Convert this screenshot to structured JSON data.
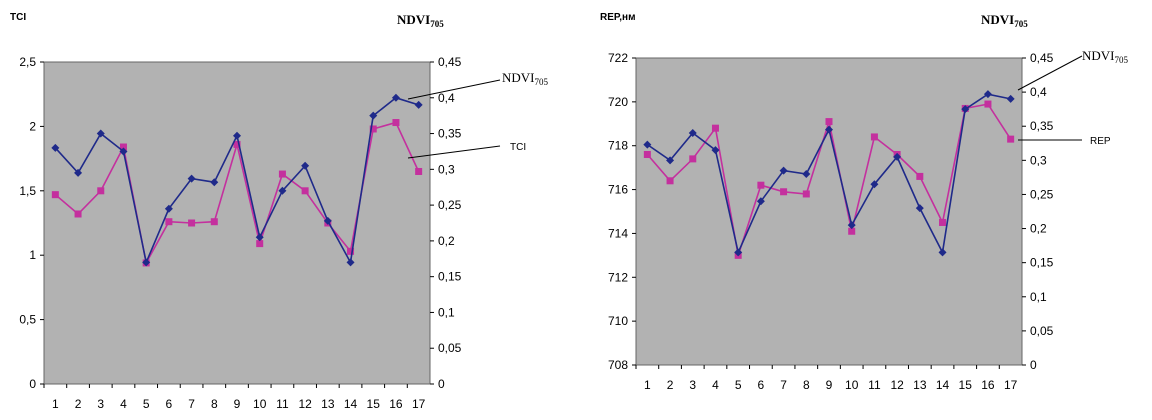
{
  "colors": {
    "plot_bg": "#b2b2b2",
    "ndvi": "#1f2a8a",
    "secondary": "#c4309e"
  },
  "chart_data": [
    {
      "type": "line",
      "x": [
        1,
        2,
        3,
        4,
        5,
        6,
        7,
        8,
        9,
        10,
        11,
        12,
        13,
        14,
        15,
        16,
        17
      ],
      "left_axis": {
        "label": "TCI",
        "ylim": [
          0,
          2.5
        ],
        "ticks": [
          "0",
          "0,5",
          "1",
          "1,5",
          "2",
          "2,5"
        ]
      },
      "right_axis": {
        "label_main": "NDVI",
        "label_sub": "705",
        "ylim": [
          0,
          0.45
        ],
        "ticks": [
          "0",
          "0,05",
          "0,1",
          "0,15",
          "0,2",
          "0,25",
          "0,3",
          "0,35",
          "0,4",
          "0,45"
        ]
      },
      "x_ticks": [
        "1",
        "2",
        "3",
        "4",
        "5",
        "6",
        "7",
        "8",
        "9",
        "10",
        "11",
        "12",
        "13",
        "14",
        "15",
        "16",
        "17"
      ],
      "series": [
        {
          "name": "NDVI705",
          "axis": "right",
          "marker": "diamond",
          "values": [
            0.33,
            0.295,
            0.35,
            0.325,
            0.17,
            0.245,
            0.287,
            0.282,
            0.347,
            0.205,
            0.27,
            0.305,
            0.228,
            0.17,
            0.375,
            0.4,
            0.39
          ]
        },
        {
          "name": "TCI",
          "axis": "left",
          "marker": "square",
          "values": [
            1.47,
            1.32,
            1.5,
            1.84,
            0.94,
            1.26,
            1.25,
            1.26,
            1.86,
            1.09,
            1.63,
            1.5,
            1.25,
            1.03,
            1.98,
            2.03,
            1.65
          ]
        }
      ],
      "callouts": [
        {
          "main": "NDVI",
          "sub": "705"
        },
        {
          "main": "TCI",
          "sub": ""
        }
      ]
    },
    {
      "type": "line",
      "x": [
        1,
        2,
        3,
        4,
        5,
        6,
        7,
        8,
        9,
        10,
        11,
        12,
        13,
        14,
        15,
        16,
        17
      ],
      "left_axis": {
        "label": "REP,нм",
        "ylim": [
          708,
          722
        ],
        "ticks": [
          "708",
          "710",
          "712",
          "714",
          "716",
          "718",
          "720",
          "722"
        ]
      },
      "right_axis": {
        "label_main": "NDVI",
        "label_sub": "705",
        "ylim": [
          0,
          0.45
        ],
        "ticks": [
          "0",
          "0,05",
          "0,1",
          "0,15",
          "0,2",
          "0,25",
          "0,3",
          "0,35",
          "0,4",
          "0,45"
        ]
      },
      "x_ticks": [
        "1",
        "2",
        "3",
        "4",
        "5",
        "6",
        "7",
        "8",
        "9",
        "10",
        "11",
        "12",
        "13",
        "14",
        "15",
        "16",
        "17"
      ],
      "series": [
        {
          "name": "NDVI705",
          "axis": "right",
          "marker": "diamond",
          "values": [
            0.323,
            0.3,
            0.34,
            0.315,
            0.165,
            0.24,
            0.285,
            0.28,
            0.345,
            0.205,
            0.265,
            0.305,
            0.23,
            0.165,
            0.375,
            0.397,
            0.39
          ]
        },
        {
          "name": "REP",
          "axis": "left",
          "marker": "square",
          "values": [
            717.6,
            716.4,
            717.4,
            718.8,
            713,
            716.2,
            715.9,
            715.8,
            719.1,
            714.1,
            718.4,
            717.6,
            716.6,
            714.5,
            719.7,
            719.9,
            718.3
          ]
        }
      ],
      "callouts": [
        {
          "main": "NDVI",
          "sub": "705"
        },
        {
          "main": "REP",
          "sub": ""
        }
      ]
    }
  ]
}
